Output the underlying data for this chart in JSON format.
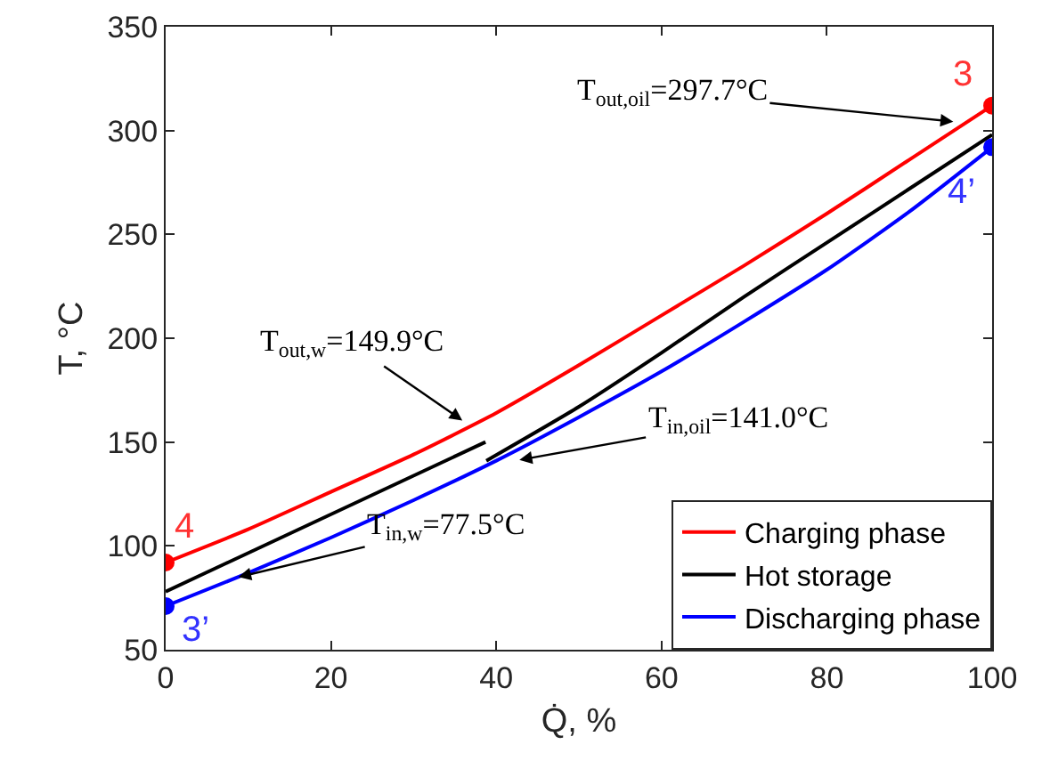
{
  "chart_data": {
    "type": "line",
    "xlabel": "Q̇, %",
    "ylabel": "T, °C",
    "xlim": [
      0,
      100
    ],
    "xticks": [
      0,
      20,
      40,
      60,
      80,
      100
    ],
    "ylim": [
      50,
      350
    ],
    "yticks": [
      50,
      100,
      150,
      200,
      250,
      300,
      350
    ],
    "grid": false,
    "legend": "bottom right",
    "marker": "none",
    "line_style": "solid",
    "series": [
      {
        "name": "Charging phase",
        "color": "#ff0000",
        "x": [
          0,
          10,
          20,
          30,
          40,
          50,
          60,
          70,
          80,
          90,
          100
        ],
        "values": [
          92,
          108,
          126,
          144,
          164,
          187,
          211,
          235,
          260,
          286,
          312
        ]
      },
      {
        "name": "Hot storage",
        "color": "#000000",
        "x": [
          0,
          38.7,
          38.75,
          38.8,
          50,
          60,
          70,
          80,
          90,
          100
        ],
        "values": [
          78,
          150,
          null,
          141,
          167,
          193,
          220,
          246,
          272,
          298
        ]
      },
      {
        "name": "Discharging phase",
        "color": "#0000ff",
        "x": [
          0,
          10,
          20,
          30,
          40,
          50,
          60,
          70,
          80,
          90,
          100
        ],
        "values": [
          71,
          87,
          104,
          122,
          141,
          162,
          184,
          208,
          233,
          261,
          292
        ]
      },
      {
        "type": "scatter",
        "marker": "circle",
        "color": "#ff0000",
        "x": [
          0,
          100
        ],
        "values": [
          92,
          312
        ]
      },
      {
        "type": "scatter",
        "marker": "circle",
        "color": "#0000ff",
        "x": [
          0,
          100
        ],
        "values": [
          71,
          292
        ]
      }
    ],
    "annotations": [
      {
        "text": "T$_{out,oil}$=297.7°C",
        "x": 95.3,
        "y": 304.3
      },
      {
        "text": "T$_{out,w}$=149.9°C",
        "x": 35.9,
        "y": 160.4
      },
      {
        "text": "T$_{in,oil}$=141.0°C",
        "x": 42.8,
        "y": 141.4
      },
      {
        "text": "T$_{in,w}$=77.5°C",
        "x": 8.8,
        "y": 85
      },
      {
        "text": "4",
        "x": 0,
        "y": 92
      },
      {
        "text": "3’",
        "x": 0,
        "y": 71
      },
      {
        "text": "3",
        "x": 100,
        "y": 312
      },
      {
        "text": "4’",
        "x": 100,
        "y": 292
      }
    ]
  }
}
